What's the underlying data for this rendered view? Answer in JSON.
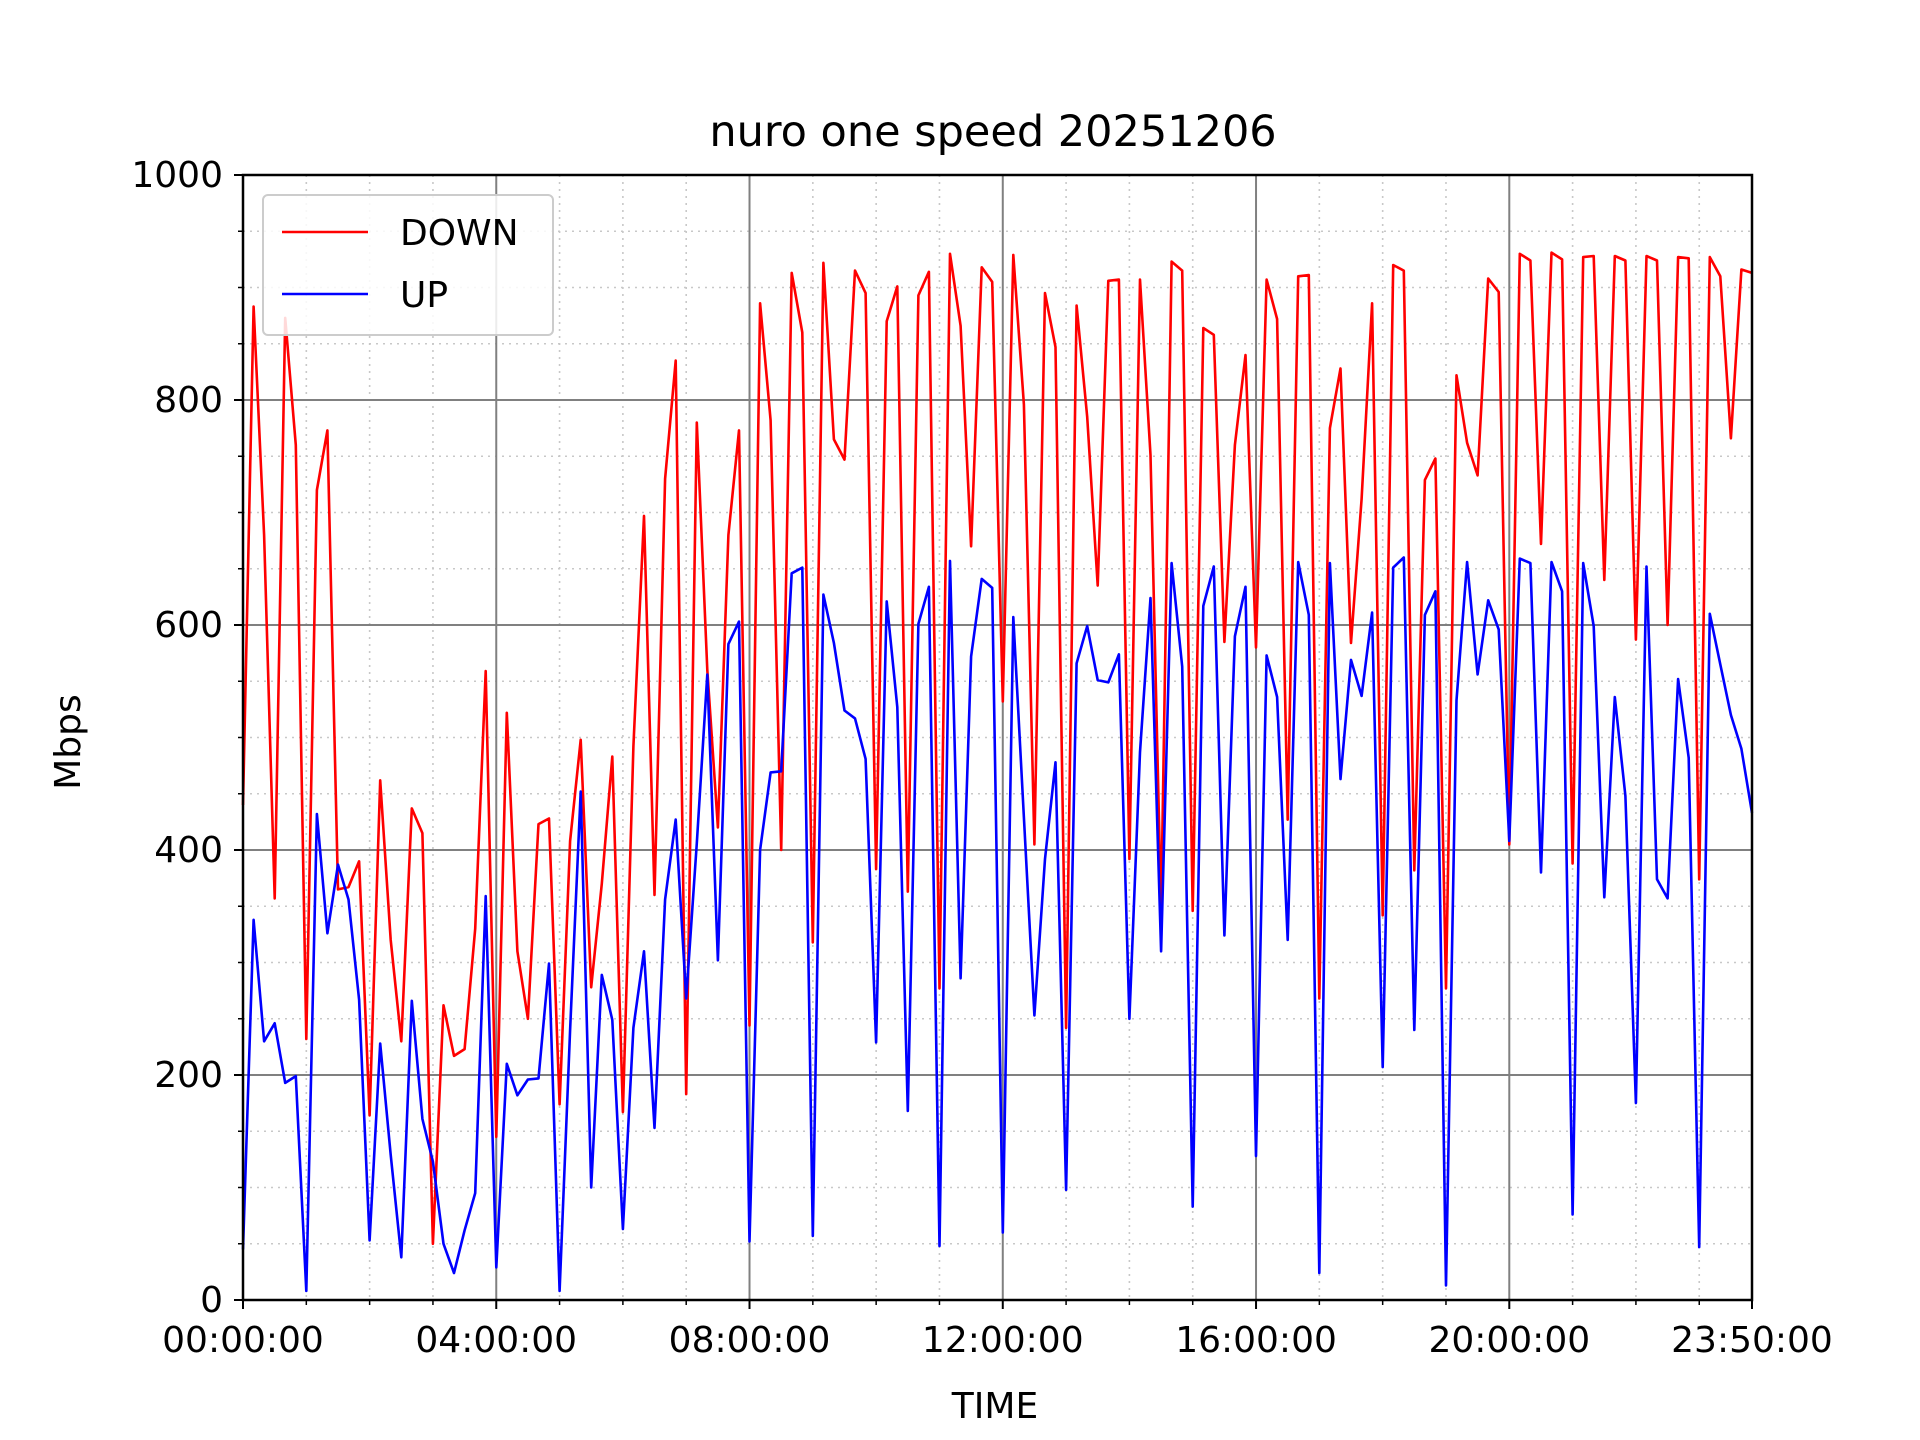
{
  "chart_data": {
    "type": "line",
    "title": "nuro one speed 20251206",
    "xlabel": "TIME",
    "ylabel": "Mbps",
    "xlim": [
      "00:00:00",
      "23:50:00"
    ],
    "ylim": [
      0,
      1000
    ],
    "x_ticks": [
      "00:00:00",
      "04:00:00",
      "08:00:00",
      "12:00:00",
      "16:00:00",
      "20:00:00",
      "23:50:00"
    ],
    "y_ticks": [
      0,
      200,
      400,
      600,
      800,
      1000
    ],
    "grid": true,
    "legend_position": "upper-left",
    "sample_interval": "00:10:00",
    "series": [
      {
        "name": "DOWN",
        "color": "#ff0000",
        "values": [
          440,
          883,
          680,
          357,
          873,
          760,
          232,
          720,
          773,
          365,
          367,
          390,
          164,
          462,
          320,
          230,
          437,
          415,
          50,
          262,
          217,
          223,
          330,
          559,
          145,
          522,
          310,
          250,
          423,
          428,
          174,
          408,
          498,
          278,
          370,
          483,
          167,
          492,
          697,
          360,
          730,
          835,
          183,
          780,
          560,
          420,
          680,
          773,
          244,
          886,
          782,
          400,
          913,
          860,
          318,
          922,
          765,
          747,
          915,
          895,
          383,
          870,
          901,
          363,
          893,
          914,
          277,
          930,
          866,
          670,
          918,
          905,
          532,
          929,
          796,
          405,
          895,
          847,
          242,
          884,
          785,
          635,
          906,
          907,
          392,
          907,
          751,
          345,
          923,
          915,
          346,
          864,
          858,
          585,
          760,
          840,
          580,
          907,
          872,
          427,
          910,
          911,
          268,
          775,
          828,
          584,
          712,
          886,
          342,
          920,
          915,
          382,
          729,
          748,
          277,
          822,
          762,
          733,
          908,
          896,
          405,
          930,
          924,
          672,
          931,
          925,
          388,
          927,
          928,
          640,
          928,
          924,
          587,
          928,
          924,
          600,
          927,
          926,
          374,
          927,
          910,
          766,
          916,
          913
        ]
      },
      {
        "name": "UP",
        "color": "#0000ff",
        "values": [
          45,
          338,
          230,
          246,
          193,
          199,
          8,
          432,
          326,
          387,
          356,
          267,
          53,
          228,
          129,
          38,
          266,
          161,
          123,
          50,
          24,
          62,
          95,
          359,
          29,
          210,
          182,
          196,
          197,
          299,
          8,
          240,
          452,
          100,
          289,
          249,
          63,
          242,
          310,
          153,
          356,
          427,
          268,
          406,
          556,
          302,
          583,
          603,
          52,
          400,
          469,
          470,
          646,
          651,
          57,
          627,
          584,
          524,
          517,
          481,
          229,
          621,
          527,
          168,
          601,
          634,
          48,
          657,
          286,
          572,
          641,
          633,
          60,
          607,
          429,
          253,
          392,
          478,
          98,
          566,
          599,
          551,
          549,
          574,
          250,
          487,
          624,
          310,
          655,
          563,
          83,
          617,
          652,
          324,
          590,
          634,
          128,
          573,
          536,
          320,
          656,
          609,
          24,
          655,
          463,
          569,
          537,
          611,
          207,
          651,
          660,
          240,
          609,
          630,
          13,
          533,
          656,
          556,
          622,
          596,
          408,
          659,
          655,
          380,
          656,
          630,
          76,
          655,
          599,
          358,
          536,
          448,
          175,
          652,
          374,
          357,
          552,
          482,
          47,
          610,
          565,
          520,
          490,
          433
        ]
      }
    ]
  }
}
